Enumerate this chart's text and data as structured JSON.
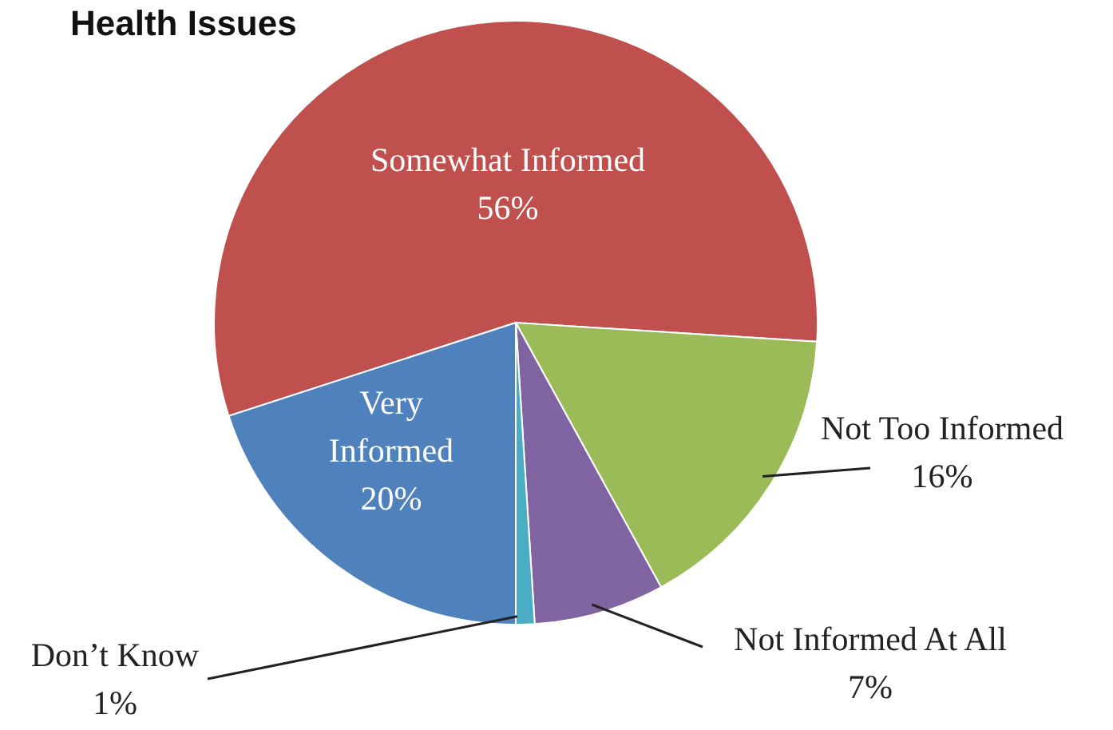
{
  "chart_data": {
    "type": "pie",
    "title": "Health Issues",
    "categories": [
      "Somewhat Informed",
      "Not Too Informed",
      "Not Informed At All",
      "Don’t Know",
      "Very Informed"
    ],
    "values": [
      56,
      16,
      7,
      1,
      20
    ],
    "value_labels": [
      "56%",
      "16%",
      "7%",
      "1%",
      "20%"
    ],
    "colors": [
      "#c0504d",
      "#9bbb59",
      "#8064a2",
      "#4bacc6",
      "#4f81bd"
    ]
  }
}
